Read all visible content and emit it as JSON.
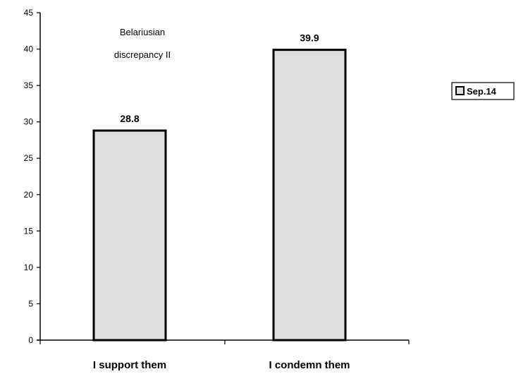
{
  "chart_data": {
    "type": "bar",
    "categories": [
      "I support them",
      "I condemn them"
    ],
    "series": [
      {
        "name": "Sep.14",
        "values": [
          28.8,
          39.9
        ]
      }
    ],
    "data_labels": [
      "28.8",
      "39.9"
    ],
    "annotation": [
      "Belariusian",
      "discrepancy II"
    ],
    "yticks": [
      0,
      5,
      10,
      15,
      20,
      25,
      30,
      35,
      40,
      45
    ],
    "ylim": [
      0,
      45
    ],
    "grid": false,
    "legend_position": "right",
    "colors": {
      "bar_fill": "#dedede",
      "bar_stroke": "#000000"
    }
  }
}
